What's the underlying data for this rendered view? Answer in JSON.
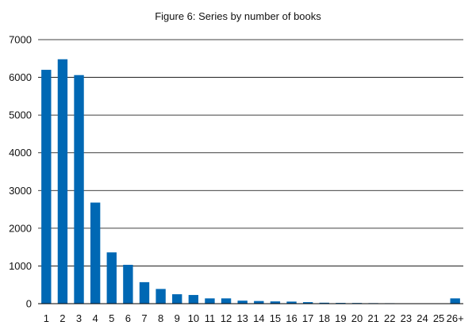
{
  "chart_data": {
    "type": "bar",
    "title": "Figure 6: Series by number of books",
    "xlabel": "",
    "ylabel": "",
    "categories": [
      "1",
      "2",
      "3",
      "4",
      "5",
      "6",
      "7",
      "8",
      "9",
      "10",
      "11",
      "12",
      "13",
      "14",
      "15",
      "16",
      "17",
      "18",
      "19",
      "20",
      "21",
      "22",
      "23",
      "24",
      "25",
      "26+"
    ],
    "values": [
      6200,
      6480,
      6060,
      2680,
      1360,
      1030,
      570,
      390,
      250,
      230,
      140,
      140,
      80,
      70,
      60,
      55,
      40,
      25,
      20,
      18,
      14,
      12,
      10,
      8,
      10,
      140
    ],
    "ylim": [
      0,
      7000
    ],
    "yticks": [
      0,
      1000,
      2000,
      3000,
      4000,
      5000,
      6000,
      7000
    ],
    "grid": "horizontal",
    "legend": "none",
    "colors": {
      "bar": "#0068b4",
      "grid": "#000000",
      "text": "#111111"
    }
  }
}
